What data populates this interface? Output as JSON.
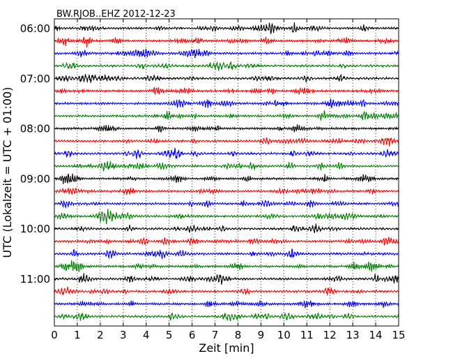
{
  "chart_data": {
    "type": "line",
    "title": "BW.RJOB..EHZ 2012-12-23",
    "xlabel": "Zeit  [min]",
    "ylabel": "UTC (Lokalzeit = UTC + 01:00)",
    "xlim": [
      0,
      15
    ],
    "x_ticks": [
      "0",
      "1",
      "2",
      "3",
      "4",
      "5",
      "6",
      "7",
      "8",
      "9",
      "10",
      "11",
      "12",
      "13",
      "14",
      "15"
    ],
    "y_ticks": [
      "06:00",
      "07:00",
      "08:00",
      "09:00",
      "10:00",
      "11:00"
    ],
    "y_tick_rows": [
      0,
      4,
      8,
      12,
      16,
      20
    ],
    "trace_count": 24,
    "trace_interval_min": 15,
    "trace_colors": [
      "#000000",
      "#ff0000",
      "#0000ff",
      "#008000"
    ],
    "grid": {
      "x": "dotted",
      "y": false
    }
  }
}
